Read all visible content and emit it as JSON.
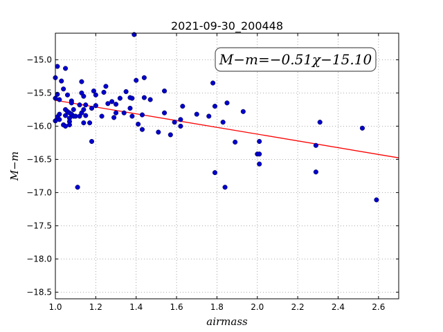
{
  "chart_data": {
    "type": "scatter",
    "title": "2021-09-30_200448",
    "xlabel": "airmass",
    "ylabel": "M−m",
    "xlim": [
      1.0,
      2.7
    ],
    "ylim": [
      -18.6,
      -14.6
    ],
    "xticks": [
      1.0,
      1.2,
      1.4,
      1.6,
      1.8,
      2.0,
      2.2,
      2.4,
      2.6
    ],
    "xtick_labels": [
      "1.0",
      "1.2",
      "1.4",
      "1.6",
      "1.8",
      "2.0",
      "2.2",
      "2.4",
      "2.6"
    ],
    "yticks": [
      -15.0,
      -15.5,
      -16.0,
      -16.5,
      -17.0,
      -17.5,
      -18.0,
      -18.5
    ],
    "ytick_labels": [
      "−15.0",
      "−15.5",
      "−16.0",
      "−16.5",
      "−17.0",
      "−17.5",
      "−18.0",
      "−18.5"
    ],
    "grid": true,
    "annotation": "M−m=−0.51χ−15.10",
    "point_color": "#0000cc",
    "fit_color": "#ff0000",
    "fit": {
      "slope": -0.51,
      "intercept": -15.1
    },
    "points": [
      [
        1.0,
        -15.27
      ],
      [
        1.0,
        -15.58
      ],
      [
        1.0,
        -15.92
      ],
      [
        1.01,
        -15.1
      ],
      [
        1.01,
        -15.52
      ],
      [
        1.01,
        -15.86
      ],
      [
        1.02,
        -15.82
      ],
      [
        1.02,
        -15.6
      ],
      [
        1.02,
        -15.9
      ],
      [
        1.03,
        -15.32
      ],
      [
        1.04,
        -15.44
      ],
      [
        1.04,
        -15.98
      ],
      [
        1.05,
        -15.13
      ],
      [
        1.05,
        -15.75
      ],
      [
        1.05,
        -15.84
      ],
      [
        1.05,
        -16.0
      ],
      [
        1.06,
        -15.53
      ],
      [
        1.06,
        -15.78
      ],
      [
        1.07,
        -15.8
      ],
      [
        1.07,
        -15.88
      ],
      [
        1.07,
        -15.93
      ],
      [
        1.07,
        -15.98
      ],
      [
        1.08,
        -15.62
      ],
      [
        1.08,
        -15.65
      ],
      [
        1.08,
        -15.82
      ],
      [
        1.09,
        -15.75
      ],
      [
        1.09,
        -15.85
      ],
      [
        1.1,
        -15.85
      ],
      [
        1.11,
        -16.92
      ],
      [
        1.12,
        -15.68
      ],
      [
        1.12,
        -15.85
      ],
      [
        1.13,
        -15.33
      ],
      [
        1.13,
        -15.5
      ],
      [
        1.13,
        -15.8
      ],
      [
        1.14,
        -15.55
      ],
      [
        1.14,
        -15.75
      ],
      [
        1.14,
        -15.95
      ],
      [
        1.15,
        -15.68
      ],
      [
        1.15,
        -15.84
      ],
      [
        1.17,
        -15.95
      ],
      [
        1.18,
        -16.23
      ],
      [
        1.18,
        -15.73
      ],
      [
        1.19,
        -15.47
      ],
      [
        1.2,
        -15.53
      ],
      [
        1.2,
        -15.69
      ],
      [
        1.23,
        -15.85
      ],
      [
        1.24,
        -15.49
      ],
      [
        1.25,
        -15.4
      ],
      [
        1.26,
        -15.66
      ],
      [
        1.28,
        -15.63
      ],
      [
        1.29,
        -15.87
      ],
      [
        1.3,
        -15.8
      ],
      [
        1.3,
        -15.67
      ],
      [
        1.32,
        -15.58
      ],
      [
        1.34,
        -15.8
      ],
      [
        1.35,
        -15.48
      ],
      [
        1.37,
        -15.57
      ],
      [
        1.37,
        -15.73
      ],
      [
        1.38,
        -15.85
      ],
      [
        1.38,
        -15.58
      ],
      [
        1.39,
        -14.62
      ],
      [
        1.4,
        -15.31
      ],
      [
        1.41,
        -15.97
      ],
      [
        1.43,
        -16.05
      ],
      [
        1.43,
        -15.83
      ],
      [
        1.44,
        -15.27
      ],
      [
        1.44,
        -15.57
      ],
      [
        1.47,
        -15.6
      ],
      [
        1.51,
        -16.09
      ],
      [
        1.54,
        -15.8
      ],
      [
        1.54,
        -15.47
      ],
      [
        1.57,
        -16.13
      ],
      [
        1.59,
        -15.94
      ],
      [
        1.62,
        -15.9
      ],
      [
        1.62,
        -16.0
      ],
      [
        1.63,
        -15.7
      ],
      [
        1.7,
        -15.82
      ],
      [
        1.76,
        -15.85
      ],
      [
        1.78,
        -15.35
      ],
      [
        1.79,
        -15.7
      ],
      [
        1.79,
        -16.7
      ],
      [
        1.83,
        -15.94
      ],
      [
        1.84,
        -16.92
      ],
      [
        1.85,
        -15.65
      ],
      [
        1.89,
        -16.24
      ],
      [
        1.93,
        -15.78
      ],
      [
        2.0,
        -16.42
      ],
      [
        2.01,
        -16.23
      ],
      [
        2.01,
        -16.42
      ],
      [
        2.01,
        -16.57
      ],
      [
        2.29,
        -16.29
      ],
      [
        2.29,
        -16.69
      ],
      [
        2.31,
        -15.94
      ],
      [
        2.52,
        -16.03
      ],
      [
        2.59,
        -17.11
      ]
    ]
  }
}
